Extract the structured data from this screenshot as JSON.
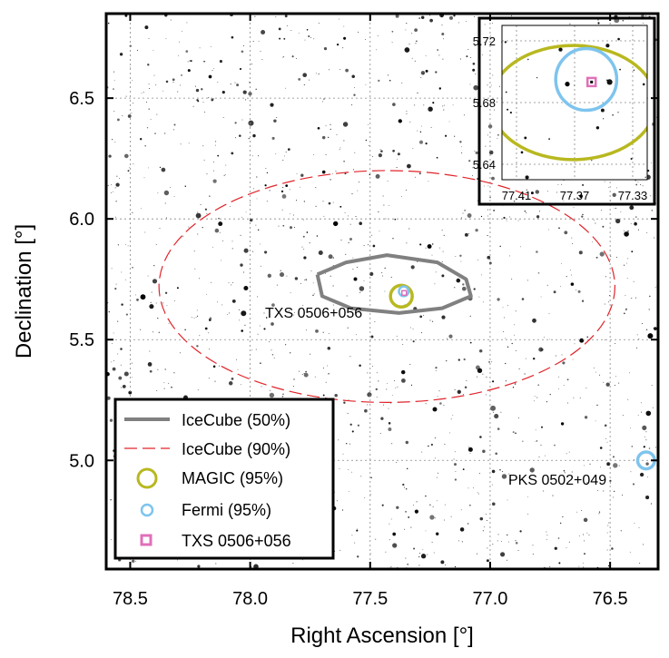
{
  "chart_data": [
    {
      "type": "scatter",
      "title": "",
      "xlabel": "Right Ascension [°]",
      "ylabel": "Declination [°]",
      "xlim": [
        78.6,
        76.3
      ],
      "ylim": [
        4.55,
        6.85
      ],
      "x_inverted": true,
      "x_ticks": [
        "78.5",
        "78.0",
        "77.5",
        "77.0",
        "76.5"
      ],
      "y_ticks": [
        "5.0",
        "5.5",
        "6.0",
        "6.5"
      ],
      "grid": true,
      "background": "optical star field",
      "legend_position": "bottom-left",
      "legend": [
        {
          "label": "IceCube (50%)",
          "style": "solid-line",
          "color": "#808080"
        },
        {
          "label": "IceCube (90%)",
          "style": "dashed-line",
          "color": "#e0242a"
        },
        {
          "label": "MAGIC (95%)",
          "style": "circle",
          "color": "#b8b820"
        },
        {
          "label": "Fermi (95%)",
          "style": "circle",
          "color": "#7ec4ee"
        },
        {
          "label": "TXS 0506+056",
          "style": "square",
          "color": "#e070b8"
        }
      ],
      "regions": [
        {
          "name": "IceCube (50%)",
          "shape": "contour",
          "x": [
            77.72,
            77.6,
            77.43,
            77.22,
            77.1,
            77.08,
            77.2,
            77.38,
            77.58,
            77.7,
            77.72
          ],
          "y": [
            5.77,
            5.82,
            5.85,
            5.82,
            5.75,
            5.68,
            5.63,
            5.61,
            5.63,
            5.68,
            5.77
          ]
        },
        {
          "name": "IceCube (90%)",
          "shape": "ellipse",
          "center": [
            77.43,
            5.72
          ],
          "ra_halfwidth": 0.95,
          "dec_halfheight": 0.48
        },
        {
          "name": "MAGIC (95%)",
          "shape": "circle",
          "center": [
            77.37,
            5.68
          ],
          "radius": 0.045
        },
        {
          "name": "Fermi (95%)",
          "shape": "circle",
          "center": [
            77.36,
            5.7
          ],
          "radius": 0.02
        }
      ],
      "sources": [
        {
          "label": "TXS 0506+056",
          "x": 77.3583,
          "y": 5.6933
        },
        {
          "label": "PKS 0502+049",
          "x": 76.35,
          "y": 5.0
        }
      ],
      "pks_fermi_circle_radius": 0.035
    },
    {
      "type": "scatter",
      "title": "",
      "xlabel": "",
      "ylabel": "",
      "xlim": [
        77.42,
        77.32
      ],
      "ylim": [
        5.63,
        5.73
      ],
      "x_ticks": [
        "77.41",
        "77.37",
        "77.33"
      ],
      "y_ticks": [
        "5.64",
        "5.68",
        "5.72"
      ],
      "grid": true,
      "regions": [
        {
          "name": "MAGIC (95%)",
          "shape": "ellipse",
          "center": [
            77.371,
            5.68
          ],
          "ra_halfwidth": 0.057,
          "dec_halfheight": 0.037
        },
        {
          "name": "Fermi (95%)",
          "shape": "circle",
          "center": [
            77.362,
            5.695
          ],
          "ra_halfwidth": 0.021,
          "dec_halfheight": 0.02
        }
      ],
      "sources": [
        {
          "label": "TXS 0506+056",
          "x": 77.3583,
          "y": 5.6933
        }
      ]
    }
  ],
  "annotations": {
    "txs_label": "TXS 0506+056",
    "pks_label": "PKS 0502+049"
  },
  "colors": {
    "icecube50": "#808080",
    "icecube90": "#e0242a",
    "magic": "#b8b820",
    "fermi": "#7ec4ee",
    "txs": "#e070b8"
  }
}
